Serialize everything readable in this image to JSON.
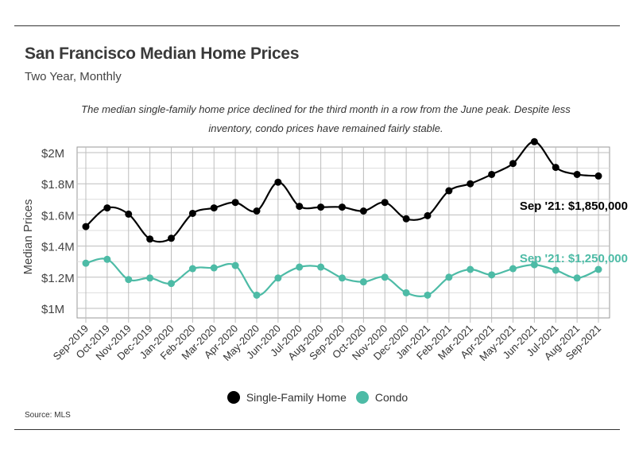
{
  "header": {
    "title": "San Francisco Median Home Prices",
    "subtitle": "Two Year, Monthly",
    "description": "The median single-family home price declined for the third month in a row from the June peak. Despite less inventory, condo prices have remained fairly stable."
  },
  "footer": {
    "source": "Source:  MLS"
  },
  "colors": {
    "single_family": "#000000",
    "condo": "#4dbba6",
    "grid": "#bdbdbd",
    "axis": "#666666"
  },
  "chart_data": {
    "type": "line",
    "title": "San Francisco Median Home Prices",
    "subtitle": "Two Year, Monthly",
    "ylabel": "Median Prices",
    "xlabel": "",
    "ylim": [
      1000000,
      2000000
    ],
    "yticks": [
      1000000,
      1200000,
      1400000,
      1600000,
      1800000,
      2000000
    ],
    "ytick_labels": [
      "$1M",
      "$1.2M",
      "$1.4M",
      "$1.6M",
      "$1.8M",
      "$2M"
    ],
    "categories": [
      "Sep-2019",
      "Oct-2019",
      "Nov-2019",
      "Dec-2019",
      "Jan-2020",
      "Feb-2020",
      "Mar-2020",
      "Apr-2020",
      "May-2020",
      "Jun-2020",
      "Jul-2020",
      "Aug-2020",
      "Sep-2020",
      "Oct-2020",
      "Nov-2020",
      "Dec-2020",
      "Jan-2021",
      "Feb-2021",
      "Mar-2021",
      "Apr-2021",
      "May-2021",
      "Jun-2021",
      "Jul-2021",
      "Aug-2021",
      "Sep-2021"
    ],
    "series": [
      {
        "name": "Single-Family Home",
        "color": "#000000",
        "values": [
          1525000,
          1645000,
          1605000,
          1445000,
          1450000,
          1610000,
          1645000,
          1680000,
          1625000,
          1810000,
          1655000,
          1650000,
          1650000,
          1625000,
          1680000,
          1575000,
          1595000,
          1755000,
          1800000,
          1860000,
          1930000,
          2070000,
          1905000,
          1860000,
          1850000
        ],
        "annotation": "Sep '21: $1,850,000"
      },
      {
        "name": "Condo",
        "color": "#4dbba6",
        "values": [
          1290000,
          1315000,
          1185000,
          1195000,
          1160000,
          1255000,
          1260000,
          1275000,
          1085000,
          1195000,
          1265000,
          1265000,
          1195000,
          1170000,
          1200000,
          1100000,
          1085000,
          1200000,
          1250000,
          1215000,
          1255000,
          1280000,
          1245000,
          1195000,
          1250000
        ],
        "annotation": "Sep '21: $1,250,000"
      }
    ],
    "legend": "bottom-center",
    "grid": true
  }
}
